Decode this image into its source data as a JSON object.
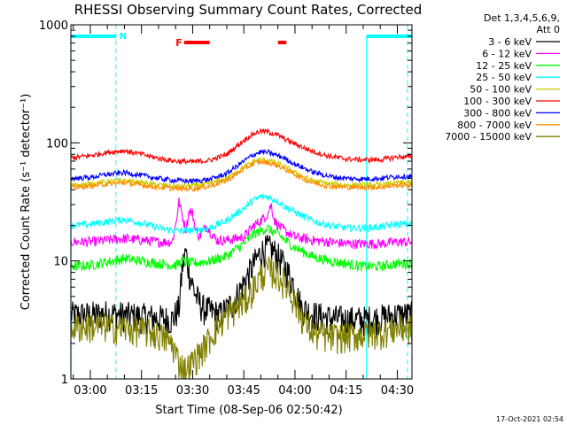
{
  "chart_data": {
    "type": "line",
    "title": "RHESSI Observing Summary Count Rates, Corrected",
    "xlabel": "Start Time (08-Sep-06 02:50:42)",
    "ylabel": "Corrected Count Rate (s⁻¹ detector⁻¹)",
    "yscale": "log",
    "ylim": [
      1,
      1000
    ],
    "xlim_minutes": [
      -5.7,
      94.3
    ],
    "y_ticks": [
      {
        "value": 1,
        "label": "1"
      },
      {
        "value": 10,
        "label": "10"
      },
      {
        "value": 100,
        "label": "100"
      },
      {
        "value": 1000,
        "label": "1000"
      }
    ],
    "x_ticks": [
      {
        "minute": 0,
        "label": "03:00"
      },
      {
        "minute": 15,
        "label": "03:15"
      },
      {
        "minute": 30,
        "label": "03:30"
      },
      {
        "minute": 45,
        "label": "03:45"
      },
      {
        "minute": 60,
        "label": "04:00"
      },
      {
        "minute": 75,
        "label": "04:15"
      },
      {
        "minute": 90,
        "label": "04:30"
      }
    ],
    "legend": {
      "placement": "right",
      "header": [
        "Det 1,3,4,5,6,9,",
        "Att 0"
      ]
    },
    "series": [
      {
        "name": "3 - 6 keV",
        "color": "#000000",
        "x": [
          -5,
          0,
          5,
          10,
          15,
          20,
          24,
          26,
          27,
          28,
          29,
          31,
          33,
          35,
          38,
          42,
          45,
          48,
          50,
          52,
          54,
          55,
          57,
          59,
          62,
          66,
          70,
          75,
          80,
          85,
          90
        ],
        "y": [
          3.5,
          3.5,
          3.6,
          3.5,
          3.4,
          3.3,
          3.2,
          4,
          9,
          12,
          8,
          5,
          4,
          3.8,
          3.5,
          4.5,
          6.5,
          9.5,
          12,
          13,
          12,
          11,
          9,
          7,
          4,
          3.5,
          3.3,
          3.2,
          3.2,
          3.3,
          3.5
        ]
      },
      {
        "name": "6 - 12 keV",
        "color": "#ff00ff",
        "x": [
          -5,
          0,
          5,
          10,
          15,
          20,
          24,
          25,
          26,
          27,
          28,
          29,
          30,
          31,
          32,
          33,
          34,
          35,
          37,
          40,
          45,
          48,
          50,
          52,
          53,
          54,
          55,
          57,
          60,
          65,
          70,
          75,
          80,
          85,
          90
        ],
        "y": [
          14.5,
          14.5,
          15,
          15.5,
          15,
          14.5,
          14.5,
          20,
          32,
          24,
          18,
          27,
          25,
          18,
          16,
          18,
          20,
          18,
          15,
          15,
          16,
          20,
          22,
          25,
          30,
          22,
          20,
          18,
          16,
          15,
          14.5,
          14,
          14,
          14,
          14.5
        ]
      },
      {
        "name": "12 - 25 keV",
        "color": "#00ff00",
        "x": [
          -5,
          0,
          5,
          10,
          15,
          20,
          25,
          27,
          28,
          30,
          32,
          35,
          40,
          45,
          48,
          50,
          52,
          53,
          55,
          57,
          60,
          65,
          70,
          75,
          80,
          85,
          90
        ],
        "y": [
          9,
          9.2,
          9.8,
          10.5,
          10,
          9.5,
          9.2,
          10,
          9.8,
          9.6,
          9.7,
          10,
          11,
          14,
          17,
          18,
          19,
          18,
          17,
          15,
          13,
          11,
          10,
          9.5,
          9,
          9,
          9.5
        ]
      },
      {
        "name": "25 - 50 keV",
        "color": "#00ffff",
        "x": [
          -5,
          0,
          5,
          10,
          15,
          20,
          25,
          30,
          35,
          40,
          45,
          48,
          50,
          52,
          55,
          57,
          60,
          65,
          70,
          75,
          80,
          85,
          90
        ],
        "y": [
          20,
          20.5,
          21.5,
          22.5,
          21,
          19,
          18,
          18.2,
          19,
          22,
          28,
          33,
          35,
          35,
          32,
          29,
          26,
          22,
          20,
          19,
          19,
          19.5,
          20.5
        ]
      },
      {
        "name": "50 - 100 keV",
        "color": "#cccc00",
        "x": [
          -5,
          0,
          5,
          10,
          15,
          20,
          25,
          30,
          35,
          40,
          45,
          48,
          50,
          52,
          55,
          57,
          60,
          65,
          70,
          75,
          80,
          85,
          90
        ],
        "y": [
          44,
          45,
          47,
          48,
          46,
          44,
          43,
          43.5,
          45,
          50,
          62,
          70,
          72,
          71,
          67,
          63,
          56,
          48,
          45,
          44,
          44,
          44,
          46
        ]
      },
      {
        "name": "100 - 300 keV",
        "color": "#ff0000",
        "x": [
          -5,
          0,
          5,
          10,
          15,
          20,
          25,
          30,
          35,
          40,
          45,
          48,
          50,
          52,
          55,
          57,
          60,
          65,
          70,
          75,
          80,
          85,
          90
        ],
        "y": [
          75,
          78,
          83,
          86,
          80,
          74,
          70,
          69,
          71,
          80,
          105,
          120,
          126,
          124,
          116,
          108,
          98,
          85,
          77,
          73,
          72,
          72,
          76
        ]
      },
      {
        "name": "300 - 800 keV",
        "color": "#0000ff",
        "x": [
          -5,
          0,
          5,
          10,
          15,
          20,
          25,
          30,
          35,
          40,
          45,
          48,
          50,
          52,
          55,
          57,
          60,
          65,
          70,
          75,
          80,
          85,
          90
        ],
        "y": [
          50,
          51,
          54,
          56,
          53,
          50,
          48,
          47.5,
          49,
          55,
          70,
          80,
          84,
          83,
          78,
          74,
          66,
          57,
          52,
          50,
          49.5,
          50,
          52
        ]
      },
      {
        "name": "800 - 7000 keV",
        "color": "#ff8c00",
        "x": [
          -5,
          0,
          5,
          10,
          15,
          20,
          25,
          30,
          35,
          40,
          45,
          48,
          50,
          52,
          55,
          57,
          60,
          65,
          70,
          75,
          80,
          85,
          90
        ],
        "y": [
          42,
          43,
          45,
          46,
          44,
          42,
          41,
          41,
          43,
          48,
          60,
          67,
          69,
          68,
          64,
          60,
          54,
          46,
          43,
          42,
          42,
          42,
          44
        ]
      },
      {
        "name": "7000 - 15000 keV",
        "color": "#808000",
        "x": [
          -5,
          0,
          5,
          10,
          15,
          20,
          24,
          26,
          28,
          30,
          33,
          36,
          40,
          45,
          48,
          50,
          52,
          54,
          56,
          58,
          60,
          63,
          66,
          70,
          75,
          80,
          85,
          90
        ],
        "y": [
          2.8,
          2.8,
          2.8,
          2.7,
          2.6,
          2.4,
          2,
          1.4,
          1.2,
          1.4,
          1.8,
          2.5,
          3.5,
          4.5,
          6,
          7.5,
          8.5,
          8,
          7,
          6,
          4.5,
          3,
          2.4,
          2.3,
          2.3,
          2.4,
          2.5,
          2.7
        ]
      }
    ],
    "annotations": [
      {
        "type": "segment",
        "color": "#00ffff",
        "y_level": "top",
        "x_start": -5.7,
        "x_end": 7.5
      },
      {
        "type": "segment",
        "color": "#00ffff",
        "y_level": "top",
        "x_start": 81,
        "x_end": 94.3
      },
      {
        "type": "dashed-vline",
        "color": "#00ffff",
        "x": 7.5
      },
      {
        "type": "dashed-vline",
        "color": "#00ffff",
        "x": 93
      },
      {
        "type": "solid-vline",
        "color": "#00ffff",
        "x": -5.7
      },
      {
        "type": "solid-vline",
        "color": "#00ffff",
        "x": 81
      },
      {
        "type": "label",
        "text": "N",
        "color": "#00ffff",
        "x": 8.5
      },
      {
        "type": "label",
        "text": "F",
        "color": "#ff0000",
        "x": 25
      },
      {
        "type": "segment",
        "color": "#ff0000",
        "y_level": "flag",
        "x_start": 27.5,
        "x_end": 35
      },
      {
        "type": "segment",
        "color": "#ff0000",
        "y_level": "flag",
        "x_start": 55,
        "x_end": 57.5
      }
    ],
    "footer_timestamp": "17-Oct-2021 02:54"
  }
}
